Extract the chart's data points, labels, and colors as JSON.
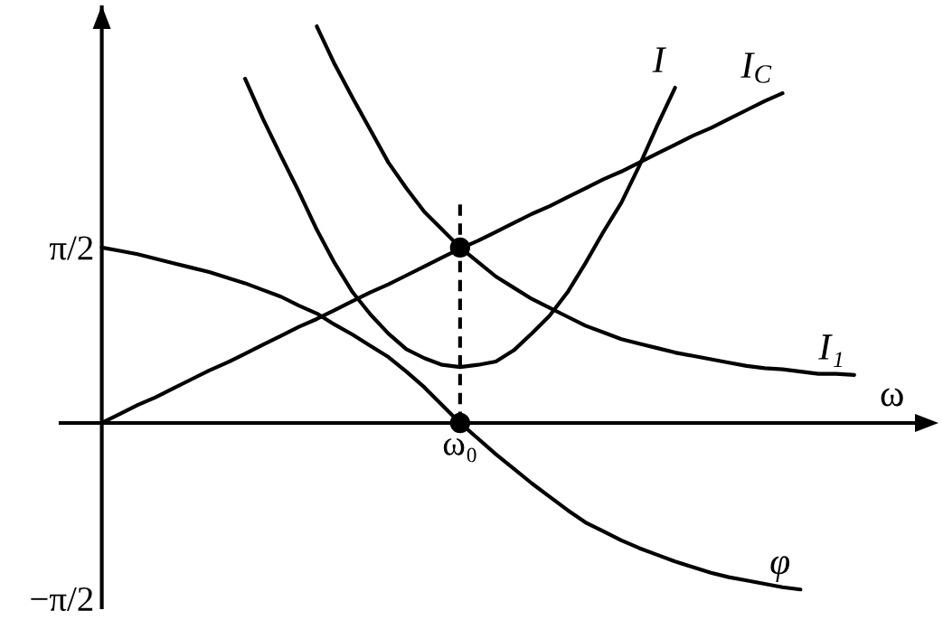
{
  "chart_data": {
    "type": "line",
    "xlabel": "ω",
    "categories": [
      null,
      null,
      null,
      null,
      null,
      null,
      null,
      null,
      null,
      null,
      null,
      null,
      null,
      null,
      null,
      null,
      null,
      null,
      null,
      null,
      "ω₀",
      null,
      null,
      null,
      null,
      null,
      null,
      null,
      null,
      null,
      null,
      null,
      null,
      null,
      null,
      null,
      null,
      null,
      null,
      null,
      null,
      null,
      null
    ],
    "ylim": [
      -1.65,
      3.72
    ],
    "yticks": [
      {
        "value": 1.571,
        "label": "π/2"
      },
      {
        "value": -1.571,
        "label": "−π/2"
      }
    ],
    "line_style": "solid",
    "series": [
      {
        "name": "I",
        "color": "#000000",
        "values": [
          null,
          null,
          null,
          null,
          null,
          null,
          null,
          null,
          3.08,
          2.72,
          2.39,
          2.07,
          1.73,
          1.43,
          1.17,
          0.97,
          0.8,
          0.66,
          0.58,
          0.52,
          0.5,
          0.52,
          0.55,
          0.65,
          0.8,
          0.96,
          1.17,
          1.43,
          1.71,
          1.97,
          2.3,
          2.66,
          3.0,
          null,
          null,
          null,
          null,
          null,
          null,
          null,
          null,
          null,
          null
        ]
      },
      {
        "name": "I$_{C}$",
        "color": "#000000",
        "values": [
          0,
          0.08,
          0.16,
          0.23,
          0.31,
          0.39,
          0.47,
          0.54,
          0.62,
          0.7,
          0.78,
          0.86,
          0.93,
          1.01,
          1.09,
          1.17,
          1.24,
          1.32,
          1.4,
          1.48,
          1.56,
          1.63,
          1.71,
          1.79,
          1.87,
          1.94,
          2.02,
          2.1,
          2.18,
          2.25,
          2.33,
          2.41,
          2.49,
          2.57,
          2.64,
          2.72,
          2.8,
          2.88,
          2.95,
          null,
          null,
          null,
          null
        ]
      },
      {
        "name": "I₁",
        "color": "#000000",
        "values": [
          null,
          null,
          null,
          null,
          null,
          null,
          null,
          null,
          null,
          null,
          null,
          null,
          3.55,
          3.21,
          2.91,
          2.62,
          2.33,
          2.1,
          1.89,
          1.73,
          1.57,
          1.44,
          1.31,
          1.21,
          1.11,
          1.03,
          0.95,
          0.87,
          0.81,
          0.75,
          0.71,
          0.67,
          0.63,
          0.6,
          0.57,
          0.54,
          0.51,
          0.49,
          0.48,
          0.46,
          0.44,
          0.44,
          0.43
        ]
      },
      {
        "name": "φ",
        "color": "#000000",
        "values": [
          1.57,
          1.54,
          1.51,
          1.47,
          1.43,
          1.39,
          1.35,
          1.3,
          1.25,
          1.19,
          1.13,
          1.05,
          0.98,
          0.88,
          0.79,
          0.69,
          0.59,
          0.46,
          0.32,
          0.16,
          0,
          -0.14,
          -0.28,
          -0.41,
          -0.54,
          -0.66,
          -0.78,
          -0.89,
          -0.97,
          -1.05,
          -1.12,
          -1.18,
          -1.24,
          -1.29,
          -1.34,
          -1.38,
          -1.41,
          -1.44,
          -1.47,
          -1.49,
          null,
          null,
          null
        ]
      },
      {
        "type": "line",
        "line_style": "dashed",
        "color": "#000000",
        "x": [
          "ω₀",
          "ω₀"
        ],
        "values": [
          0,
          1.97
        ]
      },
      {
        "type": "scatter",
        "marker": "circle",
        "color": "#000000",
        "x": [
          "ω₀",
          "ω₀"
        ],
        "values": [
          1.57,
          0
        ]
      }
    ]
  }
}
